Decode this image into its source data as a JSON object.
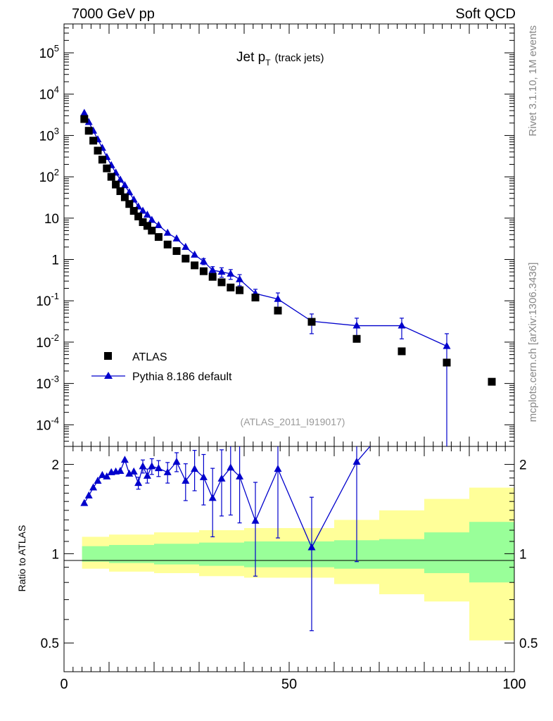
{
  "header": {
    "left": "7000 GeV pp",
    "right": "Soft QCD",
    "plot_title": "Jet p",
    "plot_title_sub": "T",
    "plot_title_note": "(track jets)",
    "side_top": "Rivet 3.1.10,  1M events",
    "side_bottom": "mcplots.cern.ch [arXiv:1306.3436]",
    "analysis_id": "(ATLAS_2011_I919017)"
  },
  "legend": {
    "data_label": "ATLAS",
    "mc_label": "Pythia 8.186 default"
  },
  "colors": {
    "data": "#000000",
    "mc": "#0000cc",
    "band_inner": "#99ff99",
    "band_outer": "#ffff99"
  },
  "chart_data": [
    {
      "type": "scatter",
      "panel": "main",
      "ylog": true,
      "xlim": [
        0,
        100
      ],
      "ylim": [
        3e-05,
        500000.0
      ],
      "ytick_labels": [
        "10^-4",
        "10^-3",
        "10^-2",
        "10^-1",
        "1",
        "10",
        "10^2",
        "10^3",
        "10^4",
        "10^5"
      ],
      "series": [
        {
          "name": "ATLAS",
          "marker": "square",
          "x": [
            4.5,
            5.5,
            6.5,
            7.5,
            8.5,
            9.5,
            10.5,
            11.5,
            12.5,
            13.5,
            14.5,
            15.5,
            16.5,
            17.5,
            18.5,
            19.5,
            21,
            23,
            25,
            27,
            29,
            31,
            33,
            35,
            37,
            39,
            42.5,
            47.5,
            55,
            65,
            75,
            85,
            95
          ],
          "y": [
            2500,
            1300,
            750,
            430,
            260,
            160,
            100,
            65,
            45,
            32,
            22,
            15,
            11,
            8,
            6.5,
            5,
            3.5,
            2.3,
            1.6,
            1.05,
            0.72,
            0.52,
            0.38,
            0.28,
            0.21,
            0.18,
            0.12,
            0.058,
            0.031,
            0.012,
            0.006,
            0.0032,
            0.0011
          ]
        },
        {
          "name": "Pythia 8.186 default",
          "marker": "triangle",
          "x": [
            4.5,
            5.5,
            6.5,
            7.5,
            8.5,
            9.5,
            10.5,
            11.5,
            12.5,
            13.5,
            14.5,
            15.5,
            16.5,
            17.5,
            18.5,
            19.5,
            21,
            23,
            25,
            27,
            29,
            31,
            33,
            35,
            37,
            39,
            42.5,
            47.5,
            55,
            65,
            75,
            85
          ],
          "y": [
            3500,
            2100,
            1300,
            800,
            500,
            300,
            190,
            125,
            85,
            62,
            42,
            28,
            19,
            15,
            12,
            9,
            6.7,
            4.4,
            3.2,
            2.0,
            1.3,
            0.9,
            0.55,
            0.5,
            0.45,
            0.33,
            0.15,
            0.11,
            0.032,
            0.025,
            0.025,
            0.008
          ],
          "yerr": [
            0,
            0,
            0,
            0,
            0,
            0,
            0,
            0,
            0,
            0,
            0,
            0,
            0,
            0,
            0,
            0,
            0,
            0,
            0,
            0,
            0,
            0.15,
            0.12,
            0.13,
            0.12,
            0.1,
            0.04,
            0.045,
            0.016,
            0.013,
            0.013,
            0.008
          ]
        }
      ]
    },
    {
      "type": "line",
      "panel": "ratio",
      "ylabel": "Ratio to ATLAS",
      "xlim": [
        0,
        100
      ],
      "ylim": [
        0.4,
        2.3
      ],
      "xtick_labels": [
        "0",
        "50",
        "100"
      ],
      "ytick_labels": [
        "0.5",
        "1",
        "2"
      ],
      "series": [
        {
          "name": "Pythia 8.186 default",
          "x": [
            4.5,
            5.5,
            6.5,
            7.5,
            8.5,
            9.5,
            10.5,
            11.5,
            12.5,
            13.5,
            14.5,
            15.5,
            16.5,
            17.5,
            18.5,
            19.5,
            21,
            23,
            25,
            27,
            29,
            31,
            33,
            35,
            37,
            39,
            42.5,
            47.5,
            55,
            65,
            70
          ],
          "y": [
            1.48,
            1.57,
            1.67,
            1.76,
            1.84,
            1.82,
            1.88,
            1.89,
            1.9,
            2.07,
            1.86,
            1.89,
            1.73,
            1.97,
            1.83,
            1.97,
            1.94,
            1.88,
            2.04,
            1.76,
            1.93,
            1.81,
            1.54,
            1.79,
            1.95,
            1.82,
            1.29,
            1.93,
            1.05,
            2.04,
            2.5
          ],
          "yerr": [
            0,
            0,
            0,
            0,
            0,
            0,
            0,
            0,
            0,
            0,
            0,
            0,
            0.08,
            0.1,
            0.1,
            0.12,
            0.12,
            0.15,
            0.15,
            0.25,
            0.3,
            0.35,
            0.4,
            0.45,
            0.6,
            0.55,
            0.45,
            0.8,
            0.5,
            1.1,
            0
          ]
        }
      ],
      "bands": [
        {
          "name": "inner",
          "edges": [
            4,
            10,
            20,
            30,
            40,
            50,
            60,
            70,
            80,
            90,
            100
          ],
          "lo": [
            0.94,
            0.93,
            0.92,
            0.91,
            0.9,
            0.9,
            0.89,
            0.89,
            0.86,
            0.8,
            0.74
          ],
          "hi": [
            1.06,
            1.07,
            1.08,
            1.09,
            1.1,
            1.1,
            1.11,
            1.12,
            1.18,
            1.28,
            1.38
          ]
        },
        {
          "name": "outer",
          "edges": [
            4,
            10,
            20,
            30,
            40,
            50,
            60,
            70,
            80,
            90,
            100
          ],
          "lo": [
            0.89,
            0.87,
            0.86,
            0.84,
            0.83,
            0.83,
            0.79,
            0.73,
            0.69,
            0.51,
            0.38
          ],
          "hi": [
            1.14,
            1.16,
            1.18,
            1.2,
            1.22,
            1.22,
            1.3,
            1.4,
            1.53,
            1.67,
            1.74
          ]
        }
      ]
    }
  ]
}
